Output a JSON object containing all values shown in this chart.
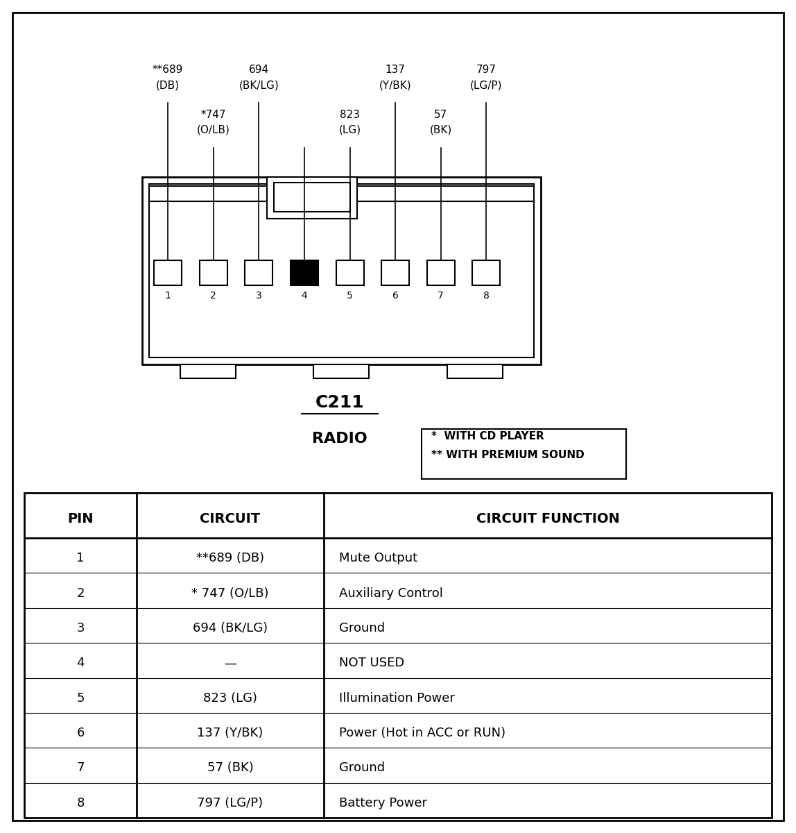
{
  "bg_color": "#ffffff",
  "border_color": "#000000",
  "connector_label": "C211",
  "subtitle": "RADIO",
  "table_headers": [
    "PIN",
    "CIRCUIT",
    "CIRCUIT FUNCTION"
  ],
  "table_data": [
    [
      "1",
      "**689 (DB)",
      "Mute Output"
    ],
    [
      "2",
      "* 747 (O/LB)",
      "Auxiliary Control"
    ],
    [
      "3",
      "694 (BK/LG)",
      "Ground"
    ],
    [
      "4",
      "—",
      "NOT USED"
    ],
    [
      "5",
      "823 (LG)",
      "Illumination Power"
    ],
    [
      "6",
      "137 (Y/BK)",
      "Power (Hot in ACC or RUN)"
    ],
    [
      "7",
      "57 (BK)",
      "Ground"
    ],
    [
      "8",
      "797 (LG/P)",
      "Battery Power"
    ]
  ],
  "legend_lines": [
    "*  WITH CD PLAYER",
    "** WITH PREMIUM SOUND"
  ],
  "labels_row1": {
    "0": [
      "**689",
      "(DB)"
    ],
    "2": [
      "694",
      "(BK/LG)"
    ],
    "5": [
      "137",
      "(Y/BK)"
    ],
    "7": [
      "797",
      "(LG/P)"
    ]
  },
  "labels_row2": {
    "1": [
      "*747",
      "(O/LB)"
    ],
    "4": [
      "823",
      "(LG)"
    ],
    "6": [
      "57",
      "(BK)"
    ]
  }
}
